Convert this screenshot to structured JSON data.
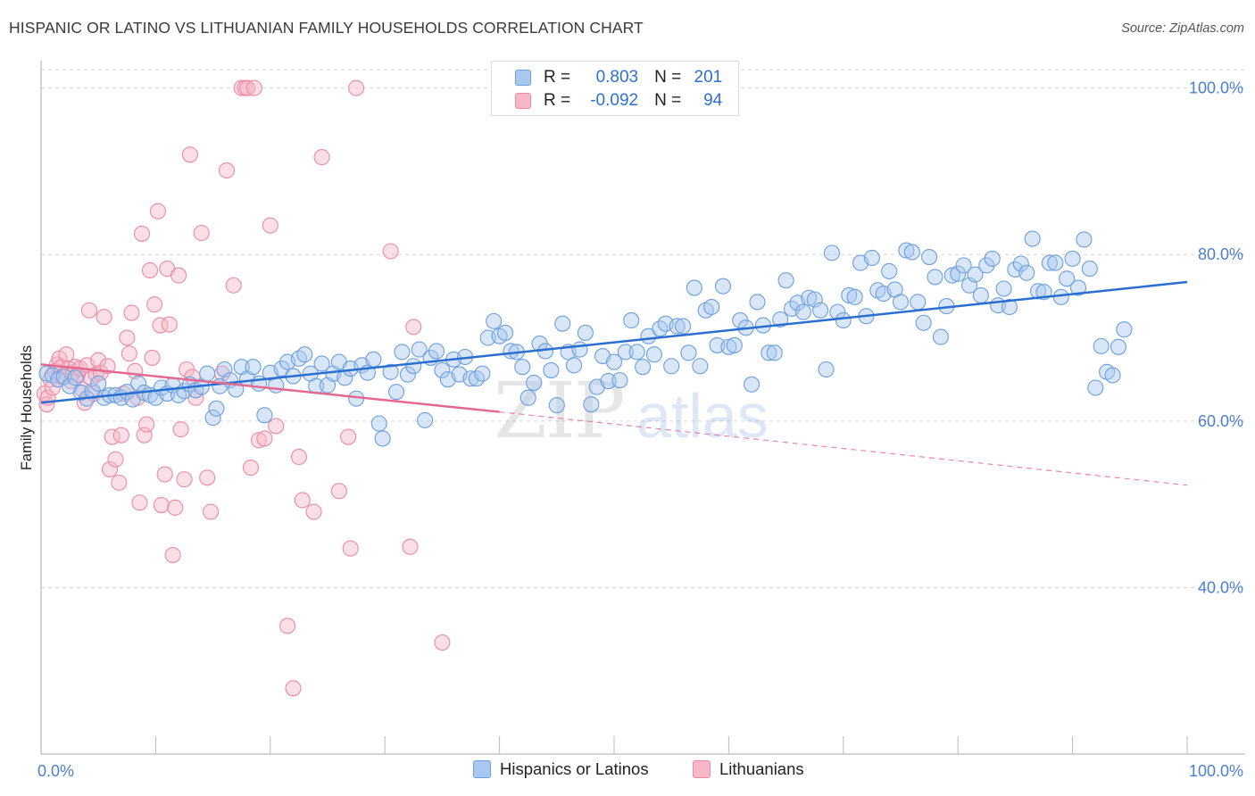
{
  "title": "HISPANIC OR LATINO VS LITHUANIAN FAMILY HOUSEHOLDS CORRELATION CHART",
  "source": "Source: ZipAtlas.com",
  "watermark": {
    "zip": "ZIP",
    "atlas": "atlas"
  },
  "legend": {
    "rows": [
      {
        "r_label": "R =",
        "r_value": "0.803",
        "n_label": "N =",
        "n_value": "201"
      },
      {
        "r_label": "R =",
        "r_value": "-0.092",
        "n_label": "N =",
        "n_value": "94"
      }
    ]
  },
  "colors": {
    "blue_fill": "#a8c8f0",
    "blue_stroke": "#6b9fdf",
    "blue_line": "#2a6fd0",
    "pink_fill": "#f7b7c8",
    "pink_stroke": "#ec8aa6",
    "pink_line": "#e4688f",
    "grid": "#d8d8d8",
    "tick_label": "#4a7fd1"
  },
  "chart_data": {
    "type": "scatter",
    "title": "HISPANIC OR LATINO VS LITHUANIAN FAMILY HOUSEHOLDS CORRELATION CHART",
    "xlabel": "",
    "ylabel": "Family Households",
    "x_tick_labels": [
      "0.0%",
      "100.0%"
    ],
    "y_tick_labels": [
      "40.0%",
      "60.0%",
      "80.0%",
      "100.0%"
    ],
    "y_ticks": [
      40,
      60,
      80,
      100
    ],
    "xlim": [
      0,
      100
    ],
    "ylim": [
      20,
      102
    ],
    "series": [
      {
        "name": "Hispanics or Latinos",
        "color": "blue",
        "trend": {
          "x": [
            0,
            100
          ],
          "y": [
            62.2,
            76.7
          ],
          "style": "solid"
        },
        "points": [
          [
            0.5,
            65.7
          ],
          [
            1,
            65.5
          ],
          [
            1.5,
            65
          ],
          [
            2,
            65.3
          ],
          [
            2.5,
            64.2
          ],
          [
            3,
            65.2
          ],
          [
            3.5,
            63.4
          ],
          [
            4,
            62.7
          ],
          [
            4.5,
            63.6
          ],
          [
            5,
            64.5
          ],
          [
            5.5,
            62.8
          ],
          [
            6,
            63.1
          ],
          [
            6.5,
            63.1
          ],
          [
            7,
            62.8
          ],
          [
            7.5,
            63.5
          ],
          [
            8,
            62.6
          ],
          [
            8.5,
            64.5
          ],
          [
            9,
            63.4
          ],
          [
            9.5,
            63.1
          ],
          [
            10,
            62.8
          ],
          [
            10.5,
            64
          ],
          [
            11,
            63.3
          ],
          [
            11.5,
            64.3
          ],
          [
            12,
            63.1
          ],
          [
            12.5,
            63.6
          ],
          [
            13,
            64.4
          ],
          [
            13.5,
            63.7
          ],
          [
            14,
            64.1
          ],
          [
            14.5,
            65.7
          ],
          [
            15,
            60.4
          ],
          [
            15.3,
            61.5
          ],
          [
            15.6,
            64.2
          ],
          [
            16,
            66.2
          ],
          [
            16.5,
            64.9
          ],
          [
            17,
            63.8
          ],
          [
            17.5,
            66.5
          ],
          [
            18,
            65.1
          ],
          [
            18.5,
            66.5
          ],
          [
            19,
            64.5
          ],
          [
            19.5,
            60.7
          ],
          [
            20,
            65.8
          ],
          [
            20.5,
            64.3
          ],
          [
            21,
            66.3
          ],
          [
            21.5,
            67.1
          ],
          [
            22,
            65.4
          ],
          [
            22.5,
            67.5
          ],
          [
            23,
            68
          ],
          [
            23.5,
            65.7
          ],
          [
            24,
            64.2
          ],
          [
            24.5,
            66.9
          ],
          [
            25,
            64.3
          ],
          [
            25.5,
            65.7
          ],
          [
            26,
            67.1
          ],
          [
            26.5,
            65.2
          ],
          [
            27,
            66.3
          ],
          [
            27.5,
            62.7
          ],
          [
            28,
            66.7
          ],
          [
            28.5,
            65.8
          ],
          [
            29,
            67.4
          ],
          [
            29.5,
            59.7
          ],
          [
            29.8,
            57.9
          ],
          [
            30.5,
            65.9
          ],
          [
            31,
            63.5
          ],
          [
            31.5,
            68.3
          ],
          [
            32,
            65.6
          ],
          [
            32.5,
            66.6
          ],
          [
            33,
            68.6
          ],
          [
            33.5,
            60.1
          ],
          [
            34,
            67.6
          ],
          [
            34.5,
            68.4
          ],
          [
            35,
            66.1
          ],
          [
            35.5,
            65
          ],
          [
            36,
            67.4
          ],
          [
            36.5,
            65.6
          ],
          [
            37,
            67.7
          ],
          [
            37.5,
            65.1
          ],
          [
            38,
            65.1
          ],
          [
            38.5,
            65.7
          ],
          [
            39,
            70
          ],
          [
            39.5,
            72
          ],
          [
            40,
            70.2
          ],
          [
            40.5,
            70.6
          ],
          [
            41,
            68.4
          ],
          [
            41.5,
            68.3
          ],
          [
            42,
            66.5
          ],
          [
            42.5,
            62.8
          ],
          [
            43,
            64.6
          ],
          [
            43.5,
            69.3
          ],
          [
            44,
            68.4
          ],
          [
            44.5,
            66.1
          ],
          [
            45,
            61.9
          ],
          [
            45.5,
            71.7
          ],
          [
            46,
            68.3
          ],
          [
            46.5,
            66.7
          ],
          [
            47,
            68.6
          ],
          [
            47.5,
            70.6
          ],
          [
            48,
            62
          ],
          [
            48.5,
            64.1
          ],
          [
            49,
            67.8
          ],
          [
            49.5,
            64.8
          ],
          [
            50,
            67.1
          ],
          [
            50.5,
            64.9
          ],
          [
            51,
            68.3
          ],
          [
            51.5,
            72.1
          ],
          [
            52,
            68.3
          ],
          [
            52.5,
            66.5
          ],
          [
            53,
            70.2
          ],
          [
            53.5,
            68
          ],
          [
            54,
            71.1
          ],
          [
            54.5,
            71.7
          ],
          [
            55,
            66.6
          ],
          [
            55.5,
            71.4
          ],
          [
            56,
            71.4
          ],
          [
            56.5,
            68.2
          ],
          [
            57,
            76
          ],
          [
            57.5,
            66.6
          ],
          [
            58,
            73.3
          ],
          [
            58.5,
            73.7
          ],
          [
            59,
            69.1
          ],
          [
            59.5,
            76.2
          ],
          [
            60,
            68.9
          ],
          [
            60.5,
            69.1
          ],
          [
            61,
            72.1
          ],
          [
            61.5,
            71.2
          ],
          [
            62,
            64.4
          ],
          [
            62.5,
            74.3
          ],
          [
            63,
            71.5
          ],
          [
            63.5,
            68.2
          ],
          [
            64,
            68.2
          ],
          [
            64.5,
            72.2
          ],
          [
            65,
            76.9
          ],
          [
            65.5,
            73.5
          ],
          [
            66,
            74.2
          ],
          [
            66.5,
            73.1
          ],
          [
            67,
            74.8
          ],
          [
            67.5,
            74.6
          ],
          [
            68,
            73.3
          ],
          [
            68.5,
            66.2
          ],
          [
            69,
            80.2
          ],
          [
            69.5,
            73.1
          ],
          [
            70,
            72.1
          ],
          [
            70.5,
            75.1
          ],
          [
            71,
            74.9
          ],
          [
            71.5,
            79
          ],
          [
            72,
            72.6
          ],
          [
            72.5,
            79.6
          ],
          [
            73,
            75.7
          ],
          [
            73.5,
            75.3
          ],
          [
            74,
            78
          ],
          [
            74.5,
            75.8
          ],
          [
            75,
            74.3
          ],
          [
            75.5,
            80.5
          ],
          [
            76,
            80.3
          ],
          [
            76.5,
            74.3
          ],
          [
            77,
            71.8
          ],
          [
            77.5,
            79.7
          ],
          [
            78,
            77.3
          ],
          [
            78.5,
            70.1
          ],
          [
            79,
            73.8
          ],
          [
            79.5,
            77.5
          ],
          [
            80,
            77.7
          ],
          [
            80.5,
            78.7
          ],
          [
            81,
            76.3
          ],
          [
            81.5,
            77.6
          ],
          [
            82,
            75.1
          ],
          [
            82.5,
            78.7
          ],
          [
            83,
            79.5
          ],
          [
            83.5,
            73.9
          ],
          [
            84,
            75.9
          ],
          [
            84.5,
            73.7
          ],
          [
            85,
            78.2
          ],
          [
            85.5,
            78.9
          ],
          [
            86,
            77.8
          ],
          [
            86.5,
            81.9
          ],
          [
            87,
            75.6
          ],
          [
            87.5,
            75.5
          ],
          [
            88,
            79
          ],
          [
            88.5,
            79
          ],
          [
            89,
            74.9
          ],
          [
            89.5,
            77.1
          ],
          [
            90,
            79.5
          ],
          [
            90.5,
            76
          ],
          [
            91,
            81.8
          ],
          [
            91.5,
            78.3
          ],
          [
            92,
            64
          ],
          [
            92.5,
            69
          ],
          [
            93,
            65.9
          ],
          [
            93.5,
            65.5
          ],
          [
            94,
            68.9
          ],
          [
            94.5,
            71
          ]
        ]
      },
      {
        "name": "Lithuanians",
        "color": "pink",
        "trend": {
          "x": [
            0,
            40
          ],
          "y": [
            66.8,
            61.1
          ],
          "style": "solid",
          "dashed_extension": {
            "x": [
              40,
              100
            ],
            "y": [
              61.1,
              52.3
            ]
          }
        },
        "points": [
          [
            0.3,
            63.3
          ],
          [
            0.5,
            62
          ],
          [
            0.6,
            62.8
          ],
          [
            0.8,
            65
          ],
          [
            1,
            64
          ],
          [
            1.2,
            66
          ],
          [
            1.4,
            66.8
          ],
          [
            1.6,
            67.5
          ],
          [
            1.8,
            66.5
          ],
          [
            2,
            65.5
          ],
          [
            2.2,
            68
          ],
          [
            2.4,
            66.3
          ],
          [
            2.6,
            64.8
          ],
          [
            2.8,
            65.8
          ],
          [
            3,
            66.5
          ],
          [
            3.2,
            65.6
          ],
          [
            3.4,
            66.3
          ],
          [
            3.6,
            63.8
          ],
          [
            3.8,
            62.2
          ],
          [
            4,
            66.7
          ],
          [
            4.2,
            73.3
          ],
          [
            4.4,
            65.1
          ],
          [
            4.6,
            63.3
          ],
          [
            4.8,
            65.6
          ],
          [
            5,
            67.3
          ],
          [
            5.2,
            65.8
          ],
          [
            5.5,
            72.5
          ],
          [
            5.8,
            66.6
          ],
          [
            6,
            54.2
          ],
          [
            6.2,
            58.1
          ],
          [
            6.5,
            55.4
          ],
          [
            6.8,
            52.6
          ],
          [
            7,
            58.3
          ],
          [
            7.2,
            63.3
          ],
          [
            7.5,
            70
          ],
          [
            7.7,
            68.1
          ],
          [
            7.9,
            73
          ],
          [
            8.2,
            66
          ],
          [
            8.4,
            62.8
          ],
          [
            8.6,
            50.2
          ],
          [
            8.8,
            82.5
          ],
          [
            9,
            58.3
          ],
          [
            9.2,
            59.6
          ],
          [
            9.5,
            78.1
          ],
          [
            9.7,
            67.6
          ],
          [
            9.9,
            74
          ],
          [
            10.2,
            85.2
          ],
          [
            10.4,
            71.5
          ],
          [
            10.5,
            49.9
          ],
          [
            10.8,
            53.6
          ],
          [
            11,
            78.3
          ],
          [
            11.2,
            71.6
          ],
          [
            11.5,
            43.9
          ],
          [
            11.7,
            49.6
          ],
          [
            12,
            77.5
          ],
          [
            12.2,
            59
          ],
          [
            12.5,
            53
          ],
          [
            12.7,
            66.2
          ],
          [
            13,
            92
          ],
          [
            13.2,
            65.3
          ],
          [
            13.5,
            62.8
          ],
          [
            14,
            82.6
          ],
          [
            14.5,
            53.2
          ],
          [
            14.8,
            49.1
          ],
          [
            15.8,
            65.7
          ],
          [
            16.2,
            90.1
          ],
          [
            16.8,
            76.3
          ],
          [
            17.5,
            100
          ],
          [
            17.8,
            100
          ],
          [
            18,
            100
          ],
          [
            18.3,
            54.4
          ],
          [
            18.6,
            100
          ],
          [
            19,
            57.7
          ],
          [
            19.5,
            57.9
          ],
          [
            20,
            83.5
          ],
          [
            20.5,
            59.4
          ],
          [
            21.5,
            35.4
          ],
          [
            22,
            27.9
          ],
          [
            22.5,
            55.7
          ],
          [
            22.8,
            50.5
          ],
          [
            23.8,
            49.1
          ],
          [
            24.5,
            91.7
          ],
          [
            26,
            51.6
          ],
          [
            26.8,
            58.1
          ],
          [
            27,
            44.7
          ],
          [
            27.5,
            100
          ],
          [
            30.5,
            80.4
          ],
          [
            32.2,
            44.9
          ],
          [
            32.5,
            71.3
          ],
          [
            35,
            33.4
          ]
        ]
      }
    ],
    "legend_entries": [
      "Hispanics or Latinos",
      "Lithuanians"
    ]
  }
}
